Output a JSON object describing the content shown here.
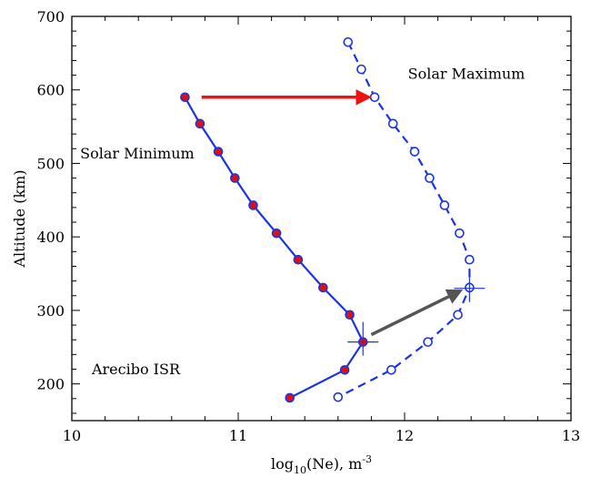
{
  "chart_data": {
    "type": "line",
    "title": "",
    "xlabel": "log",
    "xlabel_sub": "10",
    "xlabel_rest": "(Ne),  m",
    "xlabel_sup": "-3",
    "ylabel": "Altitude (km)",
    "xlim": [
      10,
      13
    ],
    "ylim": [
      150,
      700
    ],
    "x_ticks": [
      10,
      11,
      12,
      13
    ],
    "y_ticks": [
      200,
      300,
      400,
      500,
      600,
      700
    ],
    "x_tick_labels": [
      "10",
      "11",
      "12",
      "13"
    ],
    "y_tick_labels": [
      "200",
      "300",
      "400",
      "500",
      "600",
      "700"
    ],
    "grid": false,
    "series": [
      {
        "name": "Solar Minimum",
        "line_style": "solid",
        "color": "#1a33e6",
        "marker_fill": "#dd1111",
        "x": [
          10.68,
          10.77,
          10.88,
          10.98,
          11.09,
          11.23,
          11.36,
          11.51,
          11.67,
          11.75,
          11.64,
          11.31
        ],
        "y": [
          590,
          554,
          516,
          480,
          443,
          405,
          369,
          331,
          294,
          257,
          219,
          181
        ]
      },
      {
        "name": "Solar Maximum",
        "line_style": "dashed",
        "color": "#1a33e6",
        "marker_fill": "#ffffff",
        "x": [
          11.66,
          11.74,
          11.82,
          11.93,
          12.06,
          12.15,
          12.24,
          12.33,
          12.39,
          12.39,
          12.32,
          12.14,
          11.92,
          11.6
        ],
        "y": [
          665,
          628,
          590,
          554,
          516,
          480,
          443,
          405,
          369,
          331,
          294,
          257,
          219,
          182
        ]
      }
    ],
    "peak_markers": [
      {
        "x": 11.75,
        "y": 257
      },
      {
        "x": 12.39,
        "y": 330
      }
    ],
    "arrows": [
      {
        "from": [
          10.78,
          590
        ],
        "to": [
          11.78,
          590
        ],
        "color": "#ee1111"
      },
      {
        "from": [
          11.8,
          267
        ],
        "to": [
          12.33,
          326
        ],
        "color": "#555555"
      }
    ],
    "annotations": [
      {
        "text": "Solar Maximum",
        "x": 12.02,
        "y": 615
      },
      {
        "text": "Solar Minimum",
        "x": 10.05,
        "y": 507
      },
      {
        "text": "Arecibo ISR",
        "x": 10.12,
        "y": 213
      }
    ]
  }
}
